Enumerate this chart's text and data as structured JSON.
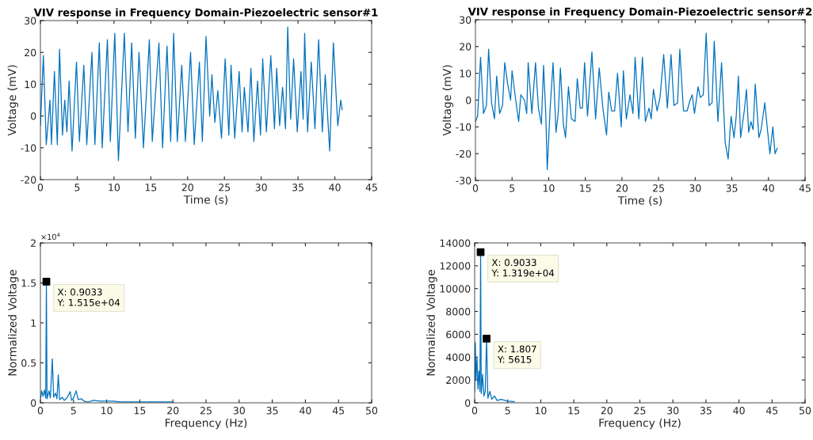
{
  "chart_data": [
    {
      "type": "line",
      "title": "VIV response in Frequency Domain-Piezoelectric sensor#1",
      "xlabel": "Time (s)",
      "ylabel": "Voltage (mV)",
      "xlim": [
        0,
        45
      ],
      "xticks": [
        0,
        5,
        10,
        15,
        20,
        25,
        30,
        35,
        40,
        45
      ],
      "ylim": [
        -20,
        30
      ],
      "yticks": [
        -20,
        -10,
        0,
        10,
        20,
        30
      ],
      "grid": false,
      "legend": false,
      "series": [
        {
          "color": "#0072bd",
          "x": [
            0.0,
            0.4,
            0.8,
            1.3,
            1.5,
            1.9,
            2.3,
            2.6,
            3.0,
            3.3,
            3.6,
            3.9,
            4.3,
            4.9,
            5.3,
            5.9,
            6.3,
            7.0,
            7.4,
            8.0,
            8.4,
            9.1,
            9.5,
            10.1,
            10.6,
            11.4,
            11.9,
            12.4,
            12.9,
            13.4,
            14.0,
            14.8,
            15.2,
            16.1,
            16.6,
            17.2,
            17.7,
            18.1,
            18.6,
            19.2,
            19.7,
            20.4,
            20.9,
            21.6,
            22.0,
            22.5,
            23.0,
            23.3,
            23.7,
            24.1,
            24.6,
            25.1,
            25.6,
            25.9,
            26.4,
            27.0,
            27.4,
            27.7,
            28.2,
            28.6,
            29.0,
            29.5,
            29.9,
            30.2,
            30.7,
            31.3,
            31.8,
            32.1,
            32.5,
            32.9,
            33.3,
            33.6,
            34.0,
            34.4,
            34.9,
            35.4,
            35.7,
            35.9,
            36.3,
            36.8,
            37.3,
            37.8,
            38.3,
            38.7,
            39.3,
            39.8,
            40.4,
            40.8,
            41.0
          ],
          "values": [
            -3,
            19,
            -9,
            5,
            -9,
            14,
            -9,
            21,
            -6,
            5,
            -5,
            11,
            -11,
            17,
            -8,
            16,
            -9,
            20,
            -9,
            23,
            -10,
            24,
            -8,
            26,
            -14,
            26,
            -5,
            23,
            -7,
            20,
            -10,
            24,
            -8,
            23,
            -10,
            22,
            -8,
            26,
            -8,
            16,
            -8,
            20,
            -9,
            17,
            -8,
            25,
            0,
            13,
            -2,
            8,
            -7,
            18,
            -6,
            16,
            -7,
            14,
            -5,
            9,
            -5,
            15,
            -8,
            11,
            -6,
            18,
            -5,
            19,
            -4,
            15,
            -3,
            9,
            -4,
            28,
            -1,
            18,
            -5,
            14,
            -1,
            26,
            -5,
            17,
            -4,
            24,
            -5,
            13,
            -11,
            23,
            -3,
            5,
            2
          ]
        }
      ]
    },
    {
      "type": "line",
      "title": "VIV response in Frequency Domain-Piezoelectric sensor#2",
      "xlabel": "Time (s)",
      "ylabel": "Voltage (mV)",
      "xlim": [
        0,
        45
      ],
      "xticks": [
        0,
        5,
        10,
        15,
        20,
        25,
        30,
        35,
        40,
        45
      ],
      "ylim": [
        -30,
        30
      ],
      "yticks": [
        -30,
        -20,
        -10,
        0,
        10,
        20,
        30
      ],
      "grid": false,
      "legend": false,
      "series": [
        {
          "color": "#0072bd",
          "x": [
            0.0,
            0.3,
            0.7,
            1.1,
            1.5,
            1.8,
            2.2,
            2.6,
            2.9,
            3.3,
            3.7,
            4.0,
            4.4,
            4.8,
            5.0,
            5.4,
            5.9,
            6.2,
            6.7,
            7.0,
            7.2,
            7.7,
            8.2,
            8.6,
            9.0,
            9.3,
            9.6,
            9.8,
            10.2,
            10.6,
            11.0,
            11.3,
            11.6,
            12.0,
            12.3,
            12.7,
            13.1,
            13.6,
            13.9,
            14.3,
            14.6,
            14.9,
            15.3,
            15.9,
            16.4,
            16.9,
            17.4,
            17.9,
            18.2,
            18.6,
            19.0,
            19.4,
            19.9,
            20.2,
            20.6,
            21.1,
            21.5,
            21.8,
            22.3,
            22.8,
            23.2,
            23.7,
            24.0,
            24.3,
            24.8,
            25.2,
            25.7,
            26.2,
            26.7,
            27.1,
            27.6,
            27.9,
            28.4,
            28.9,
            29.3,
            29.6,
            29.9,
            30.4,
            30.7,
            31.1,
            31.5,
            31.9,
            32.3,
            32.6,
            33.1,
            33.6,
            34.1,
            34.5,
            34.9,
            35.3,
            35.6,
            35.9,
            36.2,
            36.7,
            37.0,
            37.3,
            37.6,
            37.9,
            38.2,
            38.7,
            39.0,
            39.5,
            39.9,
            40.2,
            40.6,
            40.9,
            41.2
          ],
          "values": [
            -8,
            -6,
            16,
            -5,
            -2,
            19,
            -1,
            -7,
            9,
            -5,
            -2,
            14,
            6,
            0,
            11,
            2,
            -8,
            2,
            0,
            -5,
            14,
            -5,
            14,
            -3,
            -9,
            13,
            -5,
            -26,
            -3,
            14,
            -12,
            -5,
            12,
            -9,
            -14,
            5,
            -7,
            -8,
            8,
            -3,
            -3,
            14,
            -6,
            18,
            -7,
            12,
            -3,
            -13,
            3,
            -4,
            -4,
            10,
            -10,
            11,
            -7,
            2,
            -5,
            16,
            -7,
            16,
            -8,
            -3,
            -7,
            4,
            -4,
            1,
            17,
            -3,
            17,
            -2,
            -1,
            19,
            -4,
            -4,
            0,
            2,
            -5,
            5,
            1,
            2,
            25,
            -2,
            -1,
            22,
            -8,
            14,
            -16,
            -22,
            -6,
            -14,
            -6,
            9,
            -14,
            -4,
            4,
            -12,
            -8,
            -11,
            6,
            -14,
            -11,
            -1,
            -12,
            -20,
            -10,
            -20,
            -18
          ]
        }
      ]
    },
    {
      "type": "line",
      "xlabel": "Frequency (Hz)",
      "ylabel": "Normalized Voltage",
      "xlim": [
        0,
        50
      ],
      "xticks": [
        0,
        5,
        10,
        15,
        20,
        25,
        30,
        35,
        40,
        45,
        50
      ],
      "ylim": [
        0,
        2
      ],
      "yticks": [
        0,
        0.5,
        1,
        1.5,
        2
      ],
      "grid": false,
      "legend": false,
      "annotations": [
        "×10$^{4}$",
        "X: 0.9033\nY: 1.515e+04"
      ],
      "series": [
        {
          "type": "scatter",
          "color": "#000000",
          "marker": "square",
          "x": [
            0.9033
          ],
          "values": [
            1.515
          ]
        },
        {
          "color": "#0072bd",
          "x": [
            0,
            0.2,
            0.4,
            0.6,
            0.8,
            0.9033,
            1.0,
            1.3,
            1.5,
            1.8,
            2.0,
            2.3,
            2.5,
            2.7,
            2.9,
            3.3,
            3.6,
            4.0,
            4.5,
            4.7,
            5.0,
            5.4,
            5.7,
            6.2,
            6.6,
            7.2,
            8,
            9,
            10,
            11,
            12,
            14,
            16,
            18,
            20
          ],
          "values": [
            0.05,
            0.15,
            0.08,
            0.16,
            0.06,
            1.515,
            0.05,
            0.15,
            0.06,
            0.55,
            0.07,
            0.12,
            0.05,
            0.35,
            0.04,
            0.07,
            0.03,
            0.06,
            0.14,
            0.03,
            0.06,
            0.15,
            0.04,
            0.05,
            0.02,
            0.01,
            0.03,
            0.02,
            0.02,
            0.02,
            0.01,
            0.01,
            0.01,
            0.01,
            0.01
          ]
        }
      ]
    },
    {
      "type": "line",
      "xlabel": "Frequency (Hz)",
      "ylabel": "Normalized Voltage",
      "xlim": [
        0,
        50
      ],
      "xticks": [
        0,
        5,
        10,
        15,
        20,
        25,
        30,
        35,
        40,
        45,
        50
      ],
      "ylim": [
        0,
        14000
      ],
      "yticks": [
        0,
        2000,
        4000,
        6000,
        8000,
        10000,
        12000,
        14000
      ],
      "grid": false,
      "legend": false,
      "annotations": [
        "X: 0.9033\nY: 1.319e+04",
        "X: 1.807\nY: 5615"
      ],
      "series": [
        {
          "type": "scatter",
          "color": "#000000",
          "marker": "square",
          "x": [
            0.9033,
            1.807
          ],
          "values": [
            13190,
            5615
          ]
        },
        {
          "color": "#0072bd",
          "x": [
            0,
            0.1,
            0.2,
            0.35,
            0.5,
            0.65,
            0.8,
            0.9033,
            1.0,
            1.2,
            1.4,
            1.6,
            1.807,
            2.0,
            2.3,
            2.6,
            3.0,
            3.4,
            4,
            5,
            6
          ],
          "values": [
            1000,
            5300,
            2000,
            4000,
            1200,
            2800,
            1000,
            13190,
            800,
            2500,
            600,
            1000,
            5615,
            400,
            1000,
            300,
            600,
            200,
            300,
            150,
            100
          ]
        }
      ]
    }
  ]
}
